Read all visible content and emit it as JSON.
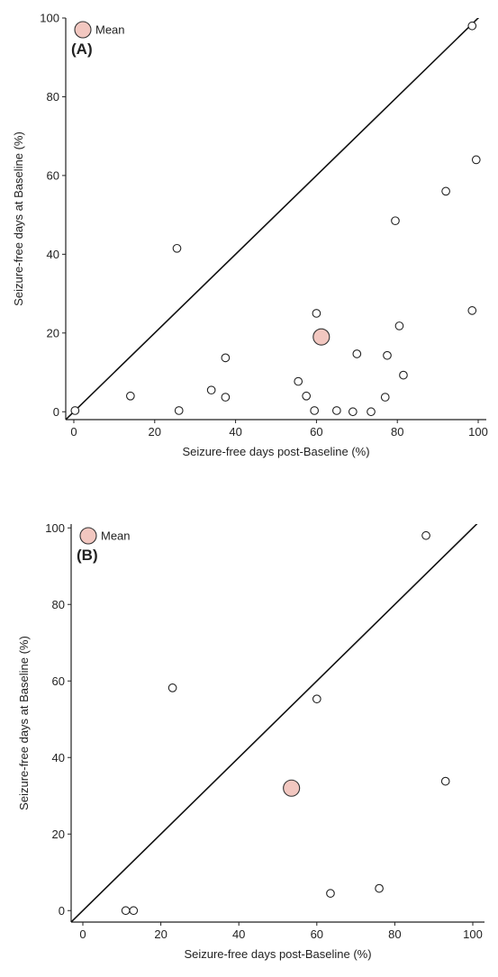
{
  "chart_data": [
    {
      "type": "scatter",
      "panel_label": "(A)",
      "xlabel": "Seizure-free days post-Baseline (%)",
      "ylabel": "Seizure-free days at Baseline (%)",
      "xlim": [
        -2,
        102
      ],
      "ylim": [
        -2,
        100
      ],
      "xticks": [
        0,
        20,
        40,
        60,
        80,
        100
      ],
      "yticks": [
        0,
        20,
        40,
        60,
        80,
        100
      ],
      "xtick_labels": [
        "0",
        "20",
        "40",
        "60",
        "80",
        "100"
      ],
      "ytick_labels": [
        "0",
        "20",
        "40",
        "60",
        "80",
        "100"
      ],
      "grid": false,
      "legend": {
        "label": "Mean",
        "position": "top-left"
      },
      "identity_line": true,
      "mean_color": "#f2c7c0",
      "points": [
        [
          0.3,
          0.3
        ],
        [
          14,
          4
        ],
        [
          25.5,
          41.5
        ],
        [
          26,
          0.3
        ],
        [
          34,
          5.5
        ],
        [
          37.5,
          13.7
        ],
        [
          37.5,
          3.7
        ],
        [
          55.5,
          7.7
        ],
        [
          57.5,
          4
        ],
        [
          59.5,
          0.3
        ],
        [
          60,
          25
        ],
        [
          65,
          0.3
        ],
        [
          69,
          0
        ],
        [
          70,
          14.7
        ],
        [
          73.5,
          0
        ],
        [
          77,
          3.7
        ],
        [
          77.5,
          14.3
        ],
        [
          79.5,
          48.5
        ],
        [
          80.5,
          21.8
        ],
        [
          81.5,
          9.3
        ],
        [
          92,
          56
        ],
        [
          98.5,
          98
        ],
        [
          98.5,
          25.7
        ],
        [
          99.5,
          64
        ]
      ],
      "mean": [
        61.2,
        19
      ]
    },
    {
      "type": "scatter",
      "panel_label": "(B)",
      "xlabel": "Seizure-free days post-Baseline (%)",
      "ylabel": "Seizure-free days at Baseline (%)",
      "xlim": [
        -3,
        103
      ],
      "ylim": [
        -3,
        101
      ],
      "xticks": [
        0,
        20,
        40,
        60,
        80,
        100
      ],
      "yticks": [
        0,
        20,
        40,
        60,
        80,
        100
      ],
      "xtick_labels": [
        "0",
        "20",
        "40",
        "60",
        "80",
        "100"
      ],
      "ytick_labels": [
        "0",
        "20",
        "40",
        "60",
        "80",
        "100"
      ],
      "grid": false,
      "legend": {
        "label": "Mean",
        "position": "top-left"
      },
      "identity_line": true,
      "mean_color": "#f2c7c0",
      "points": [
        [
          11,
          0
        ],
        [
          13,
          0
        ],
        [
          23,
          58.2
        ],
        [
          60,
          55.3
        ],
        [
          63.5,
          4.5
        ],
        [
          76,
          5.8
        ],
        [
          88,
          98
        ],
        [
          93,
          33.8
        ]
      ],
      "mean": [
        53.5,
        32
      ]
    }
  ]
}
